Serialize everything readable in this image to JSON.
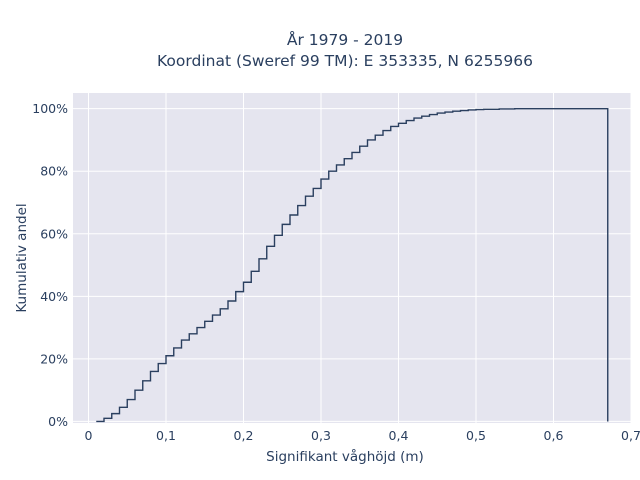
{
  "chart_data": {
    "type": "line",
    "subtype": "ecdf-step",
    "title_line1": "År 1979 - 2019",
    "title_line2": "Koordinat (Sweref 99 TM): E 353335, N 6255966",
    "xlabel": "Signifikant våghöjd (m)",
    "ylabel": "Kumulativ andel",
    "xlim": [
      -0.02,
      0.7
    ],
    "ylim": [
      -0.005,
      1.05
    ],
    "x_ticks": [
      0,
      0.1,
      0.2,
      0.3,
      0.4,
      0.5,
      0.6,
      0.7
    ],
    "x_tick_labels": [
      "0",
      "0,1",
      "0,2",
      "0,3",
      "0,4",
      "0,5",
      "0,6",
      "0,7"
    ],
    "y_ticks": [
      0,
      0.2,
      0.4,
      0.6,
      0.8,
      1.0
    ],
    "y_tick_labels": [
      "0%",
      "20%",
      "40%",
      "60%",
      "80%",
      "100%"
    ],
    "grid": true,
    "legend": "none",
    "colors": {
      "plot_bg": "#e5e5ef",
      "grid": "#ffffff",
      "line": "#2a3f5f",
      "text": "#2a3f5f"
    },
    "points": [
      [
        0.01,
        0.0
      ],
      [
        0.02,
        0.01
      ],
      [
        0.03,
        0.025
      ],
      [
        0.04,
        0.045
      ],
      [
        0.05,
        0.07
      ],
      [
        0.06,
        0.1
      ],
      [
        0.07,
        0.13
      ],
      [
        0.08,
        0.16
      ],
      [
        0.09,
        0.185
      ],
      [
        0.1,
        0.21
      ],
      [
        0.11,
        0.235
      ],
      [
        0.12,
        0.26
      ],
      [
        0.13,
        0.28
      ],
      [
        0.14,
        0.3
      ],
      [
        0.15,
        0.32
      ],
      [
        0.16,
        0.34
      ],
      [
        0.17,
        0.36
      ],
      [
        0.18,
        0.385
      ],
      [
        0.19,
        0.415
      ],
      [
        0.2,
        0.445
      ],
      [
        0.21,
        0.48
      ],
      [
        0.22,
        0.52
      ],
      [
        0.23,
        0.56
      ],
      [
        0.24,
        0.595
      ],
      [
        0.25,
        0.63
      ],
      [
        0.26,
        0.66
      ],
      [
        0.27,
        0.69
      ],
      [
        0.28,
        0.72
      ],
      [
        0.29,
        0.745
      ],
      [
        0.3,
        0.775
      ],
      [
        0.31,
        0.8
      ],
      [
        0.32,
        0.82
      ],
      [
        0.33,
        0.84
      ],
      [
        0.34,
        0.86
      ],
      [
        0.35,
        0.88
      ],
      [
        0.36,
        0.9
      ],
      [
        0.37,
        0.915
      ],
      [
        0.38,
        0.93
      ],
      [
        0.39,
        0.943
      ],
      [
        0.4,
        0.953
      ],
      [
        0.41,
        0.962
      ],
      [
        0.42,
        0.97
      ],
      [
        0.43,
        0.976
      ],
      [
        0.44,
        0.981
      ],
      [
        0.45,
        0.986
      ],
      [
        0.46,
        0.989
      ],
      [
        0.47,
        0.992
      ],
      [
        0.48,
        0.994
      ],
      [
        0.49,
        0.996
      ],
      [
        0.5,
        0.997
      ],
      [
        0.51,
        0.998
      ],
      [
        0.53,
        0.999
      ],
      [
        0.55,
        1.0
      ],
      [
        0.67,
        1.0
      ],
      [
        0.67,
        0.0
      ]
    ]
  }
}
